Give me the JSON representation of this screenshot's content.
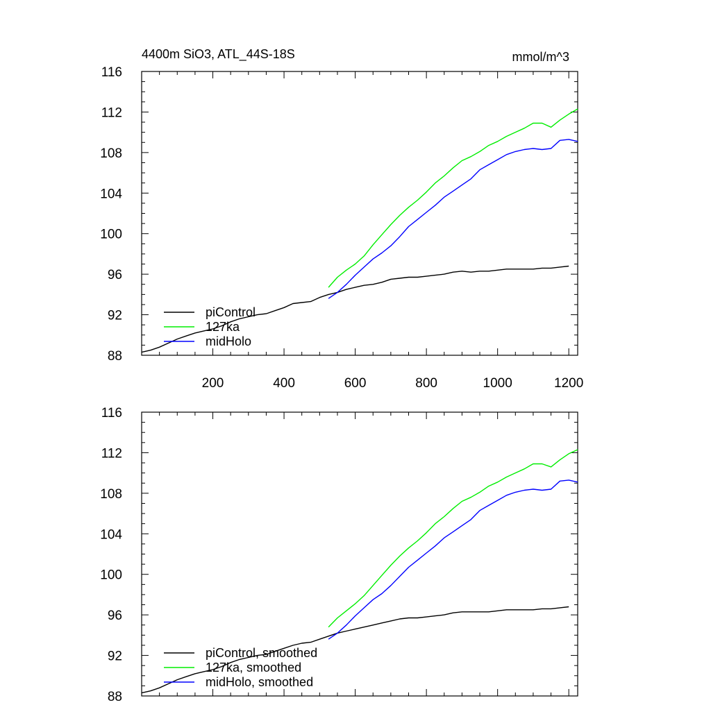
{
  "header": {
    "title": "4400m SiO3, ATL_44S-18S",
    "units": "mmol/m^3"
  },
  "chart_data": [
    {
      "type": "line",
      "title": "4400m SiO3, ATL_44S-18S",
      "units": "mmol/m^3",
      "xlabel": "",
      "ylabel": "",
      "xlim": [
        0,
        1225
      ],
      "ylim": [
        88,
        116
      ],
      "x_ticks": [
        200,
        400,
        600,
        800,
        1000,
        1200
      ],
      "x_tick_labels_shown": true,
      "y_ticks": [
        88,
        92,
        96,
        100,
        104,
        108,
        112,
        116
      ],
      "legend_position": "bottom-left",
      "series": [
        {
          "name": "piControl",
          "color": "#000000",
          "x": [
            0,
            25,
            50,
            75,
            100,
            125,
            150,
            175,
            200,
            225,
            250,
            275,
            300,
            325,
            350,
            375,
            400,
            425,
            450,
            475,
            500,
            525,
            550,
            575,
            600,
            625,
            650,
            675,
            700,
            725,
            750,
            775,
            800,
            825,
            850,
            875,
            900,
            925,
            950,
            975,
            1000,
            1025,
            1050,
            1075,
            1100,
            1125,
            1150,
            1175,
            1200
          ],
          "y": [
            88.3,
            88.5,
            88.8,
            89.2,
            89.6,
            89.9,
            90.2,
            90.4,
            90.6,
            90.9,
            91.3,
            91.6,
            91.8,
            92.0,
            92.1,
            92.4,
            92.7,
            93.1,
            93.2,
            93.3,
            93.7,
            94.0,
            94.2,
            94.5,
            94.7,
            94.9,
            95.0,
            95.2,
            95.5,
            95.6,
            95.7,
            95.7,
            95.8,
            95.9,
            96.0,
            96.2,
            96.3,
            96.2,
            96.3,
            96.3,
            96.4,
            96.5,
            96.5,
            96.5,
            96.5,
            96.6,
            96.6,
            96.7,
            96.8
          ]
        },
        {
          "name": "127ka",
          "color": "#00ee00",
          "x": [
            525,
            550,
            575,
            600,
            625,
            650,
            675,
            700,
            725,
            750,
            775,
            800,
            825,
            850,
            875,
            900,
            925,
            950,
            975,
            1000,
            1025,
            1050,
            1075,
            1100,
            1125,
            1150,
            1175,
            1200,
            1225
          ],
          "y": [
            94.7,
            95.7,
            96.4,
            97.0,
            97.8,
            98.9,
            99.9,
            100.9,
            101.8,
            102.6,
            103.3,
            104.1,
            105.0,
            105.7,
            106.5,
            107.2,
            107.6,
            108.1,
            108.7,
            109.1,
            109.6,
            110.0,
            110.4,
            110.9,
            110.9,
            110.5,
            111.2,
            111.8,
            112.3
          ]
        },
        {
          "name": "midHolo",
          "color": "#0000ff",
          "x": [
            525,
            550,
            575,
            600,
            625,
            650,
            675,
            700,
            725,
            750,
            775,
            800,
            825,
            850,
            875,
            900,
            925,
            950,
            975,
            1000,
            1025,
            1050,
            1075,
            1100,
            1125,
            1150,
            1175,
            1200,
            1225
          ],
          "y": [
            93.6,
            94.2,
            95.0,
            95.9,
            96.7,
            97.5,
            98.1,
            98.8,
            99.7,
            100.7,
            101.4,
            102.1,
            102.8,
            103.6,
            104.2,
            104.8,
            105.4,
            106.3,
            106.8,
            107.3,
            107.8,
            108.1,
            108.3,
            108.4,
            108.3,
            108.4,
            109.2,
            109.3,
            109.1
          ]
        }
      ],
      "legend": [
        "piControl",
        "127ka",
        "midHolo"
      ]
    },
    {
      "type": "line",
      "title": "",
      "xlabel": "",
      "ylabel": "",
      "xlim": [
        0,
        1225
      ],
      "ylim": [
        88,
        116
      ],
      "x_ticks": [
        200,
        400,
        600,
        800,
        1000,
        1200
      ],
      "x_tick_labels_shown": false,
      "y_ticks": [
        88,
        92,
        96,
        100,
        104,
        108,
        112,
        116
      ],
      "legend_position": "bottom-left",
      "series": [
        {
          "name": "piControl, smoothed",
          "color": "#000000",
          "x": [
            0,
            25,
            50,
            75,
            100,
            125,
            150,
            175,
            200,
            225,
            250,
            275,
            300,
            325,
            350,
            375,
            400,
            425,
            450,
            475,
            500,
            525,
            550,
            575,
            600,
            625,
            650,
            675,
            700,
            725,
            750,
            775,
            800,
            825,
            850,
            875,
            900,
            925,
            950,
            975,
            1000,
            1025,
            1050,
            1075,
            1100,
            1125,
            1150,
            1175,
            1200
          ],
          "y": [
            88.3,
            88.5,
            88.8,
            89.2,
            89.6,
            89.9,
            90.2,
            90.4,
            90.6,
            90.9,
            91.3,
            91.6,
            91.8,
            92.0,
            92.1,
            92.4,
            92.7,
            93.0,
            93.2,
            93.3,
            93.6,
            93.9,
            94.2,
            94.4,
            94.6,
            94.8,
            95.0,
            95.2,
            95.4,
            95.6,
            95.7,
            95.7,
            95.8,
            95.9,
            96.0,
            96.2,
            96.3,
            96.3,
            96.3,
            96.3,
            96.4,
            96.5,
            96.5,
            96.5,
            96.5,
            96.6,
            96.6,
            96.7,
            96.8
          ]
        },
        {
          "name": "127ka, smoothed",
          "color": "#00ee00",
          "x": [
            525,
            550,
            575,
            600,
            625,
            650,
            675,
            700,
            725,
            750,
            775,
            800,
            825,
            850,
            875,
            900,
            925,
            950,
            975,
            1000,
            1025,
            1050,
            1075,
            1100,
            1125,
            1150,
            1175,
            1200,
            1225
          ],
          "y": [
            94.8,
            95.7,
            96.4,
            97.1,
            97.9,
            98.9,
            99.9,
            100.9,
            101.8,
            102.6,
            103.3,
            104.1,
            105.0,
            105.7,
            106.5,
            107.2,
            107.6,
            108.1,
            108.7,
            109.1,
            109.6,
            110.0,
            110.4,
            110.9,
            110.9,
            110.6,
            111.3,
            111.9,
            112.3
          ]
        },
        {
          "name": "midHolo, smoothed",
          "color": "#0000ff",
          "x": [
            525,
            550,
            575,
            600,
            625,
            650,
            675,
            700,
            725,
            750,
            775,
            800,
            825,
            850,
            875,
            900,
            925,
            950,
            975,
            1000,
            1025,
            1050,
            1075,
            1100,
            1125,
            1150,
            1175,
            1200,
            1225
          ],
          "y": [
            93.6,
            94.2,
            95.0,
            95.9,
            96.7,
            97.5,
            98.1,
            98.9,
            99.8,
            100.7,
            101.4,
            102.1,
            102.8,
            103.6,
            104.2,
            104.8,
            105.4,
            106.3,
            106.8,
            107.3,
            107.8,
            108.1,
            108.3,
            108.4,
            108.3,
            108.4,
            109.2,
            109.3,
            109.1
          ]
        }
      ],
      "legend": [
        "piControl, smoothed",
        "127ka, smoothed",
        "midHolo, smoothed"
      ]
    }
  ]
}
